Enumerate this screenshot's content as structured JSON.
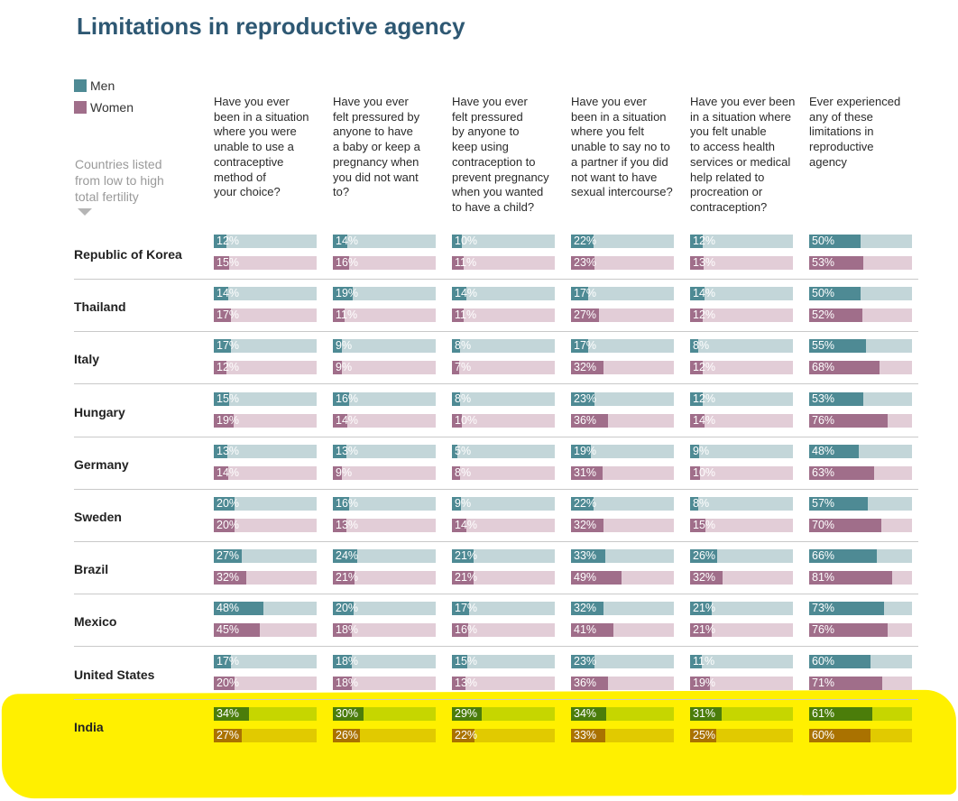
{
  "title": "Limitations in reproductive agency",
  "legend": [
    {
      "label": "Men",
      "color": "#4e8a94"
    },
    {
      "label": "Women",
      "color": "#a06e8a"
    }
  ],
  "sort_note": "Countries listed from low to high total fertility",
  "colors": {
    "men": "#4e8a94",
    "men_track": "#c3d6d9",
    "women": "#a06e8a",
    "women_track": "#e2cdd7",
    "highlight": "#fff000",
    "highlight_men": "#4b7d0a",
    "highlight_men_track": "#c6d600",
    "highlight_women": "#aa7200",
    "highlight_women_track": "#e1ca00"
  },
  "chart_data": {
    "type": "bar",
    "title": "Limitations in reproductive agency",
    "questions": [
      "Have you ever been in a situation where you were unable to use a contraceptive method of your choice?",
      "Have you ever felt pressured by anyone to have a baby or keep a pregnancy when you did not want to?",
      "Have you ever felt pressured by anyone to keep using contraception to prevent pregnancy when you wanted to have a child?",
      "Have you ever been in a situation where you felt unable to say no to a partner if you did not want to have sexual intercourse?",
      "Have you ever been in a situation where you felt unable to access health services or medical help related to procreation or contraception?",
      "Ever experienced any of these limitations in reproductive agency"
    ],
    "question_lines": [
      [
        "Have you ever",
        "been in a situation",
        "where you were",
        "unable to use a",
        "contraceptive",
        "method of",
        "your choice?"
      ],
      [
        "Have you ever",
        "felt pressured by",
        "anyone to have",
        "a baby or keep a",
        "pregnancy when",
        "you did not want",
        "to?"
      ],
      [
        "Have you ever",
        "felt pressured",
        "by anyone to",
        "keep using",
        "contraception to",
        "prevent pregnancy",
        "when you wanted",
        "to have a child?"
      ],
      [
        "Have you ever",
        "been in a situation",
        "where you felt",
        "unable to say no to",
        "a partner if you did",
        "not want to have",
        "sexual intercourse?"
      ],
      [
        "Have you ever been",
        "in a situation where",
        "you felt unable",
        "to access health",
        "services or medical",
        "help related to",
        "procreation or",
        "contraception?"
      ],
      [
        "Ever experienced",
        "any of these",
        "limitations in",
        "reproductive",
        "agency"
      ]
    ],
    "series": [
      {
        "name": "Men"
      },
      {
        "name": "Women"
      }
    ],
    "ylim": [
      0,
      100
    ],
    "rows": [
      {
        "country": "Republic of Korea",
        "men": [
          12,
          14,
          10,
          22,
          12,
          50
        ],
        "women": [
          15,
          16,
          11,
          23,
          13,
          53
        ]
      },
      {
        "country": "Thailand",
        "men": [
          14,
          19,
          14,
          17,
          14,
          50
        ],
        "women": [
          17,
          11,
          11,
          27,
          12,
          52
        ]
      },
      {
        "country": "Italy",
        "men": [
          17,
          9,
          8,
          17,
          8,
          55
        ],
        "women": [
          12,
          9,
          7,
          32,
          12,
          68
        ]
      },
      {
        "country": "Hungary",
        "men": [
          15,
          16,
          8,
          23,
          12,
          53
        ],
        "women": [
          19,
          14,
          10,
          36,
          14,
          76
        ]
      },
      {
        "country": "Germany",
        "men": [
          13,
          13,
          5,
          19,
          9,
          48
        ],
        "women": [
          14,
          9,
          8,
          31,
          10,
          63
        ]
      },
      {
        "country": "Sweden",
        "men": [
          20,
          16,
          9,
          22,
          8,
          57
        ],
        "women": [
          20,
          13,
          14,
          32,
          15,
          70
        ]
      },
      {
        "country": "Brazil",
        "men": [
          27,
          24,
          21,
          33,
          26,
          66
        ],
        "women": [
          32,
          21,
          21,
          49,
          32,
          81
        ]
      },
      {
        "country": "Mexico",
        "men": [
          48,
          20,
          17,
          32,
          21,
          73
        ],
        "women": [
          45,
          18,
          16,
          41,
          21,
          76
        ]
      },
      {
        "country": "United States",
        "men": [
          17,
          18,
          15,
          23,
          11,
          60
        ],
        "women": [
          20,
          18,
          13,
          36,
          19,
          71
        ]
      },
      {
        "country": "India",
        "men": [
          34,
          30,
          29,
          34,
          31,
          61
        ],
        "women": [
          27,
          26,
          22,
          33,
          25,
          60
        ],
        "highlighted": true
      }
    ]
  }
}
